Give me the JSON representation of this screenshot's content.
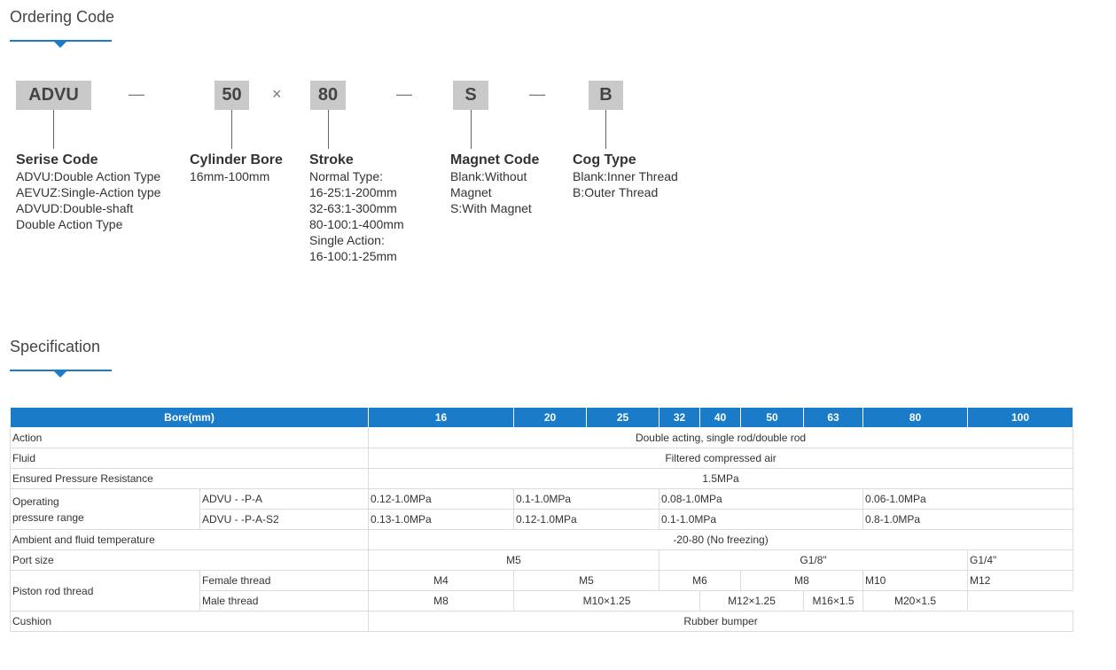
{
  "ordering": {
    "title": "Ordering Code",
    "codes": [
      {
        "code": "ADVU",
        "title": "Serise Code",
        "lines": [
          "ADVU:Double Action Type",
          "AEVUZ:Single-Action type",
          "ADVUD:Double-shaft",
          "Double Action Type"
        ]
      },
      {
        "code": "50",
        "title": "Cylinder Bore",
        "lines": [
          "16mm-100mm"
        ]
      },
      {
        "code": "80",
        "title": "Stroke",
        "lines": [
          "Normal Type:",
          "16-25:1-200mm",
          "32-63:1-300mm",
          "80-100:1-400mm",
          "Single Action:",
          "16-100:1-25mm"
        ]
      },
      {
        "code": "S",
        "title": "Magnet Code",
        "lines": [
          "Blank:Without",
          "Magnet",
          "S:With Magnet"
        ]
      },
      {
        "code": "B",
        "title": "Cog Type",
        "lines": [
          "Blank:Inner Thread",
          "B:Outer Thread"
        ]
      }
    ],
    "separators": [
      "—",
      "×",
      "—",
      "—"
    ]
  },
  "spec": {
    "title": "Specification",
    "header": [
      "Bore(mm)",
      "16",
      "20",
      "25",
      "32",
      "40",
      "50",
      "63",
      "80",
      "100"
    ],
    "rows": [
      {
        "label": "Action",
        "cells": [
          "Double acting, single rod/double rod"
        ]
      },
      {
        "label": "Fluid",
        "cells": [
          "Filtered compressed air"
        ]
      },
      {
        "label": "Ensured Pressure Resistance",
        "cells": [
          "1.5MPa"
        ]
      },
      {
        "label_lines": [
          "Operating",
          "pressure range"
        ],
        "sub": [
          {
            "label": "ADVU - -P-A",
            "cells": [
              "0.12-1.0MPa",
              "0.1-1.0MPa",
              "0.08-1.0MPa",
              "0.06-1.0MPa"
            ]
          },
          {
            "label": "ADVU - -P-A-S2",
            "cells": [
              "0.13-1.0MPa",
              "0.12-1.0MPa",
              "0.1-1.0MPa",
              "0.8-1.0MPa"
            ]
          }
        ]
      },
      {
        "label": "Ambient and fluid temperature",
        "cells": [
          "-20-80 (No freezing)"
        ]
      },
      {
        "label": "Port size",
        "cells": [
          "M5",
          "G1/8\"",
          "G1/4\""
        ]
      },
      {
        "label": "Piston rod thread",
        "sub": [
          {
            "label": "Female thread",
            "cells": [
              "M4",
              "M5",
              "M6",
              "M8",
              "M10",
              "M12"
            ]
          },
          {
            "label": "Male thread",
            "cells": [
              "M8",
              "M10×1.25",
              "M12×1.25",
              "M16×1.5",
              "M20×1.5"
            ]
          }
        ]
      },
      {
        "label": "Cushion",
        "cells": [
          "Rubber bumper"
        ]
      }
    ]
  }
}
